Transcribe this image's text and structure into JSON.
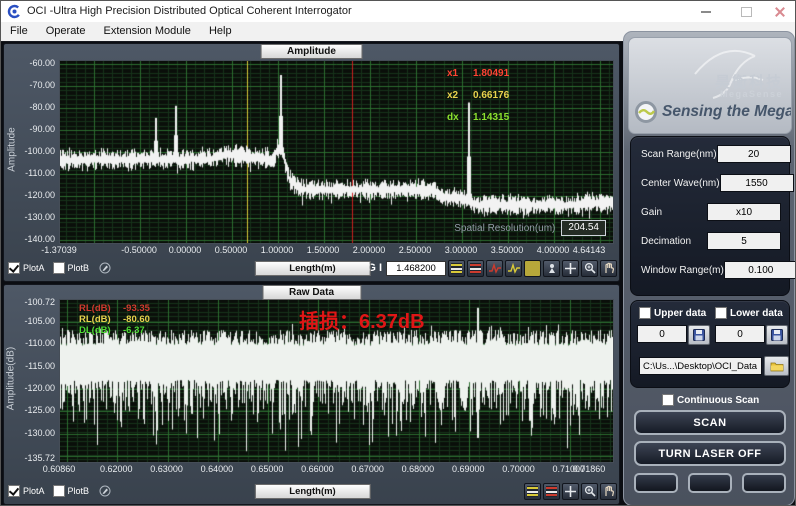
{
  "window": {
    "title": "OCI -Ultra High Precision Distributed Optical Coherent Interrogator"
  },
  "menu": {
    "items": [
      {
        "label": "File"
      },
      {
        "label": "Operate"
      },
      {
        "label": "Extension Module"
      },
      {
        "label": "Help"
      }
    ]
  },
  "plot1": {
    "tab": "Amplitude",
    "ylabel": "Amplitude",
    "xlabel": "Length(m)",
    "plota_label": "PlotA",
    "plotb_label": "PlotB",
    "gi_label": "G I",
    "gi_value": "1.468200",
    "spatial_label": "Spatial Resolution(um)",
    "spatial_value": "204.54",
    "readout": [
      {
        "label": "x1",
        "value": "1.80491",
        "color": "#ff4433"
      },
      {
        "label": "x2",
        "value": "0.66176",
        "color": "#e8d44d"
      },
      {
        "label": "dx",
        "value": "1.14315",
        "color": "#8ce22e"
      }
    ]
  },
  "plot2": {
    "tab": "Raw Data",
    "ylabel": "Amplitude(dB)",
    "xlabel": "Length(m)",
    "plota_label": "PlotA",
    "plotb_label": "PlotB",
    "legend": [
      {
        "label": "RL(dB)",
        "value": "-93.35",
        "color": "#d03a2e"
      },
      {
        "label": "RL(dB)",
        "value": "-80.60",
        "color": "#e8d44d"
      },
      {
        "label": "DL(dB)",
        "value": "-6.37",
        "color": "#4fdc35"
      }
    ],
    "annotation": "插损：6.37dB",
    "annotation_color": "#e01616"
  },
  "side_panel": {
    "brand": {
      "cn": "昊衡科技",
      "en": "MegaSense",
      "slogan": "Sensing the Mega"
    },
    "settings": [
      {
        "label": "Scan Range(nm)",
        "value": "20"
      },
      {
        "label": "Center Wave(nm)",
        "value": "1550"
      },
      {
        "label": "Gain",
        "value": "x10"
      },
      {
        "label": "Decimation",
        "value": "5"
      },
      {
        "label": "Window Range(m)",
        "value": "0.100"
      }
    ],
    "upper_data_label": "Upper data",
    "lower_data_label": "Lower data",
    "upper_value": "0",
    "lower_value": "0",
    "path_value": "C:\\Us...\\Desktop\\OCI_Data",
    "continuous_label": "Continuous Scan",
    "scan_label": "SCAN",
    "laser_label": "TURN LASER OFF"
  },
  "chart_data": [
    {
      "type": "line",
      "title": "Amplitude",
      "xlabel": "Length(m)",
      "ylabel": "Amplitude",
      "xlim": [
        -1.37039,
        4.64143
      ],
      "ylim": [
        -140,
        -60
      ],
      "grid": true,
      "trace_color": "#f2f2f2",
      "xticks": [
        {
          "v": -1.37039,
          "t": "-1.37039"
        },
        {
          "v": -0.5,
          "t": "-0.50000"
        },
        {
          "v": 0.0,
          "t": "0.00000"
        },
        {
          "v": 0.5,
          "t": "0.50000"
        },
        {
          "v": 1.0,
          "t": "1.00000"
        },
        {
          "v": 1.5,
          "t": "1.50000"
        },
        {
          "v": 2.0,
          "t": "2.00000"
        },
        {
          "v": 2.5,
          "t": "2.50000"
        },
        {
          "v": 3.0,
          "t": "3.00000"
        },
        {
          "v": 3.5,
          "t": "3.50000"
        },
        {
          "v": 4.0,
          "t": "4.00000"
        },
        {
          "v": 4.64143,
          "t": "4.64143"
        }
      ],
      "yticks": [
        {
          "v": -60,
          "t": "-60.00"
        },
        {
          "v": -70,
          "t": "-70.00"
        },
        {
          "v": -80,
          "t": "-80.00"
        },
        {
          "v": -90,
          "t": "-90.00"
        },
        {
          "v": -100,
          "t": "-100.00"
        },
        {
          "v": -110,
          "t": "-110.00"
        },
        {
          "v": -120,
          "t": "-120.00"
        },
        {
          "v": -130,
          "t": "-130.00"
        },
        {
          "v": -140,
          "t": "-140.00"
        }
      ],
      "cursors": [
        {
          "name": "x2",
          "x": 0.66176,
          "color": "#d8c938"
        },
        {
          "name": "x1",
          "x": 1.80491,
          "color": "#cc2020",
          "marker_y": -118
        }
      ],
      "profile": [
        [
          -1.37039,
          -103.6
        ],
        [
          0.28,
          -103.2
        ],
        [
          0.34,
          -101.4
        ],
        [
          0.64,
          -101.4
        ],
        [
          0.72,
          -102.9
        ],
        [
          0.96,
          -102.9
        ],
        [
          1.0,
          -98.0
        ],
        [
          1.05,
          -100.0
        ],
        [
          1.12,
          -112.0
        ],
        [
          1.24,
          -117.0
        ],
        [
          2.7,
          -117.2
        ],
        [
          2.78,
          -120.6
        ],
        [
          3.02,
          -120.8
        ],
        [
          3.14,
          -124.0
        ],
        [
          4.1,
          -124.2
        ],
        [
          4.64143,
          -122.4
        ]
      ],
      "noise_amp": 3.4,
      "spikes": [
        {
          "x": -0.335,
          "top": -84.5
        },
        {
          "x": -0.115,
          "top": -79.0
        },
        {
          "x": 1.02,
          "top": -65.0
        },
        {
          "x": 3.07,
          "top": -77.5
        }
      ]
    },
    {
      "type": "line",
      "title": "Raw Data",
      "xlabel": "Length(m)",
      "ylabel": "Amplitude(dB)",
      "xlim": [
        0.6086,
        0.7186
      ],
      "ylim": [
        -135.72,
        -100.72
      ],
      "grid": true,
      "trace_color": "#eef2ee",
      "xticks": [
        {
          "v": 0.6086,
          "t": "0.60860"
        },
        {
          "v": 0.62,
          "t": "0.62000"
        },
        {
          "v": 0.63,
          "t": "0.63000"
        },
        {
          "v": 0.64,
          "t": "0.64000"
        },
        {
          "v": 0.65,
          "t": "0.65000"
        },
        {
          "v": 0.66,
          "t": "0.66000"
        },
        {
          "v": 0.67,
          "t": "0.67000"
        },
        {
          "v": 0.68,
          "t": "0.68000"
        },
        {
          "v": 0.69,
          "t": "0.69000"
        },
        {
          "v": 0.7,
          "t": "0.70000"
        },
        {
          "v": 0.71,
          "t": "0.71000"
        },
        {
          "v": 0.7186,
          "t": "0.71860"
        }
      ],
      "yticks": [
        {
          "v": -100.72,
          "t": "-100.72"
        },
        {
          "v": -105,
          "t": "-105.00"
        },
        {
          "v": -110,
          "t": "-110.00"
        },
        {
          "v": -115,
          "t": "-115.00"
        },
        {
          "v": -120,
          "t": "-120.00"
        },
        {
          "v": -125,
          "t": "-125.00"
        },
        {
          "v": -130,
          "t": "-130.00"
        },
        {
          "v": -135.72,
          "t": "-135.72"
        }
      ],
      "noise": {
        "top_base": -108.5,
        "top_jit": 3.5,
        "bot_base": -118.0,
        "bot_jit": 15.0
      },
      "spikes": [
        {
          "x": 0.6915,
          "top": -101.8,
          "bottom": -131.0
        }
      ]
    }
  ]
}
